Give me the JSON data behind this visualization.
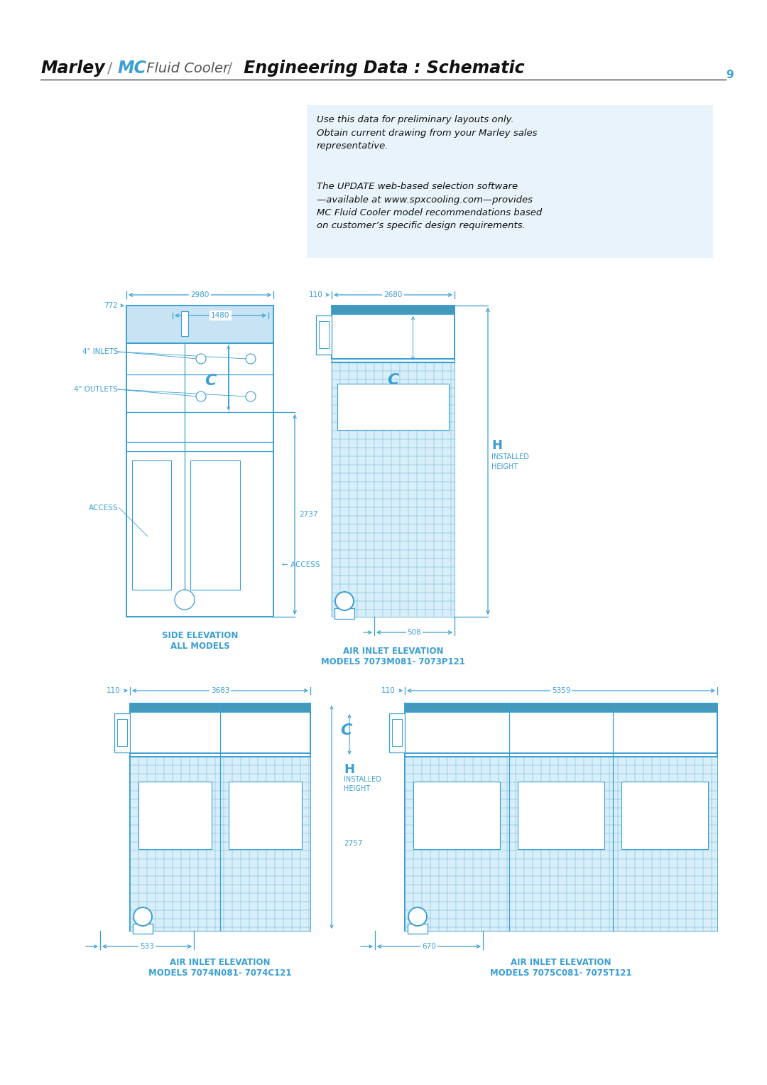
{
  "bg_color": "#ffffff",
  "blue": "#3B9FD4",
  "light_blue_bg": "#E8F3FB",
  "page_num": "9",
  "info_box_text1": "Use this data for preliminary layouts only.\nObtain current drawing from your Marley sales\nrepresentative.",
  "info_box_text2": "The UPDATE web-based selection software\n—available at www.spxcooling.com—provides\nMC Fluid Cooler model recommendations based\non customer’s specific design requirements.",
  "caption1a": "SIDE ELEVATION",
  "caption1b": "ALL MODELS",
  "caption2a": "AIR INLET ELEVATION",
  "caption2b": "MODELS 7073M081- 7073P121",
  "caption3a": "AIR INLET ELEVATION",
  "caption3b": "MODELS 7074N081- 7074C121",
  "caption4a": "AIR INLET ELEVATION",
  "caption4b": "MODELS 7075C081- 7075T121"
}
